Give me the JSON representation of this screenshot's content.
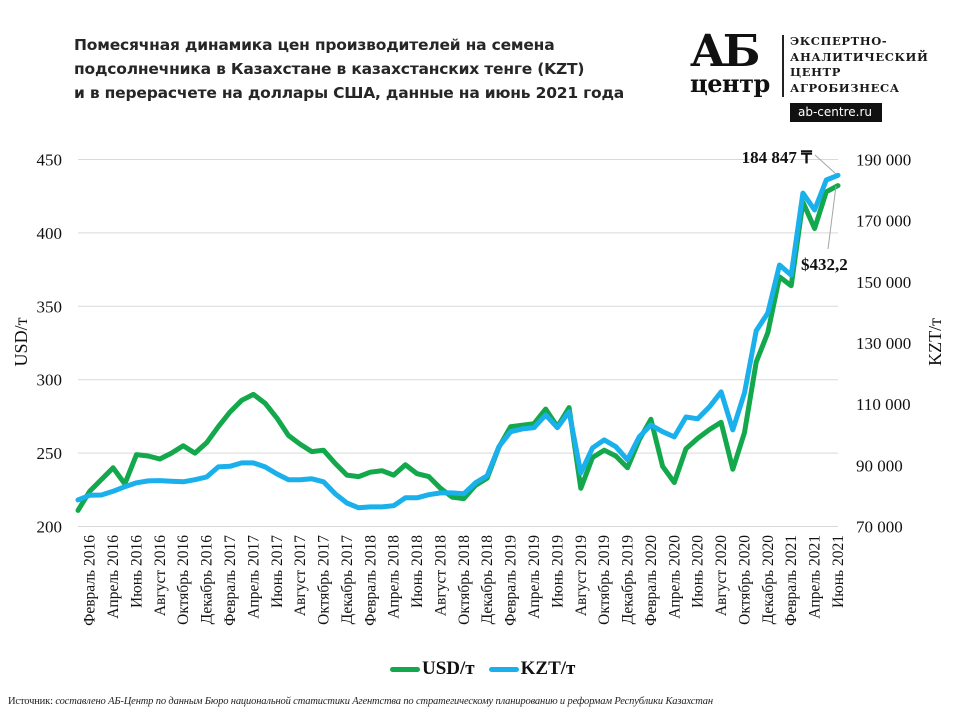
{
  "header": {
    "title_lines": [
      "Помесячная  динамика цен производителей на семена",
      "подсолнечника  в Казахстане в казахстанских тенге (KZT)",
      "и в перерасчете на доллары США, данные на июнь 2021 года"
    ]
  },
  "logo": {
    "mark_top": "АБ",
    "mark_bottom": "центр",
    "text_lines": [
      "ЭКСПЕРТНО-",
      "АНАЛИТИЧЕСКИЙ",
      "ЦЕНТР",
      "АГРОБИЗНЕСА"
    ],
    "url": "ab-centre.ru"
  },
  "colors": {
    "usd": "#12a84b",
    "kzt": "#1ab0ec",
    "grid": "#d9d9d9",
    "text": "#111111"
  },
  "legend": {
    "items": [
      {
        "label": "USD/т",
        "color": "#12a84b"
      },
      {
        "label": "KZT/т",
        "color": "#1ab0ec"
      }
    ]
  },
  "annotations": {
    "kzt_last": "184 847 ₸",
    "usd_last": "$432,2"
  },
  "source": {
    "lead": "Источник:",
    "text": " составлено АБ-Центр по данным Бюро национальной статистики Агентства по стратегическому планированию и реформам Республики  Казахстан"
  },
  "chart_data": {
    "type": "line",
    "title": "Помесячная динамика цен производителей на семена подсолнечника в Казахстане в казахстанских тенге (KZT) и в перерасчете на доллары США, данные на июнь 2021 года",
    "xlabel": "",
    "ylabel": "USD/т",
    "y2label": "KZT/т",
    "ylim": [
      200,
      450
    ],
    "y2lim": [
      70000,
      190000
    ],
    "yticks": [
      200,
      250,
      300,
      350,
      400,
      450
    ],
    "y2ticks": [
      "70 000",
      "90 000",
      "110 000",
      "130 000",
      "150 000",
      "170 000",
      "190 000"
    ],
    "y2tick_values": [
      70000,
      90000,
      110000,
      130000,
      150000,
      170000,
      190000
    ],
    "grid": true,
    "legend_position": "bottom",
    "x": [
      "Январь 2016",
      "Февраль 2016",
      "Март 2016",
      "Апрель 2016",
      "Май 2016",
      "Июнь 2016",
      "Июль 2016",
      "Август 2016",
      "Сентябрь 2016",
      "Октябрь 2016",
      "Ноябрь 2016",
      "Декабрь 2016",
      "Январь 2017",
      "Февраль 2017",
      "Март 2017",
      "Апрель 2017",
      "Май 2017",
      "Июнь 2017",
      "Июль 2017",
      "Август 2017",
      "Сентябрь 2017",
      "Октябрь 2017",
      "Ноябрь 2017",
      "Декабрь 2017",
      "Январь 2018",
      "Февраль 2018",
      "Март 2018",
      "Апрель 2018",
      "Май 2018",
      "Июнь 2018",
      "Июль 2018",
      "Август 2018",
      "Сентябрь 2018",
      "Октябрь 2018",
      "Ноябрь 2018",
      "Декабрь 2018",
      "Январь 2019",
      "Февраль 2019",
      "Март 2019",
      "Апрель 2019",
      "Май 2019",
      "Июнь 2019",
      "Июль 2019",
      "Август 2019",
      "Сентябрь 2019",
      "Октябрь 2019",
      "Ноябрь 2019",
      "Декабрь 2019",
      "Январь 2020",
      "Февраль 2020",
      "Март 2020",
      "Апрель 2020",
      "Май 2020",
      "Июнь 2020",
      "Июль 2020",
      "Август 2020",
      "Сентябрь 2020",
      "Октябрь 2020",
      "Ноябрь 2020",
      "Декабрь 2020",
      "Январь 2021",
      "Февраль 2021",
      "Март 2021",
      "Апрель 2021",
      "Май 2021",
      "Июнь 2021"
    ],
    "x_tick_labels": [
      "Февраль 2016",
      "Апрель 2016",
      "Июнь 2016",
      "Август 2016",
      "Октябрь 2016",
      "Декабрь 2016",
      "Февраль 2017",
      "Апрель 2017",
      "Июнь 2017",
      "Август 2017",
      "Октябрь 2017",
      "Декабрь 2017",
      "Февраль 2018",
      "Апрель 2018",
      "Июнь 2018",
      "Август 2018",
      "Октябрь 2018",
      "Декабрь 2018",
      "Февраль 2019",
      "Апрель 2019",
      "Июнь 2019",
      "Август 2019",
      "Октябрь 2019",
      "Декабрь 2019",
      "Февраль 2020",
      "Апрель 2020",
      "Июнь 2020",
      "Август 2020",
      "Октябрь 2020",
      "Декабрь 2020",
      "Февраль 2021",
      "Апрель 2021",
      "Июнь 2021"
    ],
    "series": [
      {
        "name": "USD/т",
        "axis": "left",
        "color": "#12a84b",
        "values": [
          211,
          224,
          232,
          240,
          229,
          249,
          248,
          246,
          250,
          255,
          250,
          257,
          268,
          278,
          286,
          290,
          284,
          274,
          262,
          256,
          251,
          252,
          243,
          235,
          234,
          237,
          238,
          235,
          242,
          236,
          234,
          226,
          220,
          219,
          228,
          233,
          254,
          268,
          269,
          270,
          280,
          268,
          281,
          226,
          247,
          252,
          248,
          240,
          259,
          273,
          241,
          230,
          253,
          260,
          266,
          271,
          239,
          264,
          312,
          332,
          370,
          364,
          421,
          403,
          428,
          432.2
        ]
      },
      {
        "name": "KZT/т",
        "axis": "right",
        "color": "#1ab0ec",
        "values": [
          78700,
          80200,
          80300,
          81500,
          83000,
          84300,
          84900,
          85000,
          84800,
          84600,
          85300,
          86200,
          89500,
          89700,
          90800,
          90800,
          89500,
          87200,
          85300,
          85300,
          85600,
          84600,
          80700,
          77700,
          76100,
          76400,
          76400,
          76800,
          79400,
          79400,
          80400,
          81000,
          81000,
          80700,
          84300,
          86600,
          96100,
          101000,
          101900,
          102300,
          106500,
          102300,
          107500,
          87500,
          95700,
          98300,
          96100,
          91800,
          99300,
          103200,
          101000,
          99300,
          105800,
          105200,
          109100,
          114000,
          101600,
          113700,
          134000,
          139800,
          155500,
          152200,
          179000,
          173500,
          183300,
          184847
        ]
      }
    ],
    "annotations": [
      {
        "series": "KZT/т",
        "point": "Июнь 2021",
        "text": "184 847 ₸"
      },
      {
        "series": "USD/т",
        "point": "Июнь 2021",
        "text": "$432,2"
      }
    ]
  }
}
